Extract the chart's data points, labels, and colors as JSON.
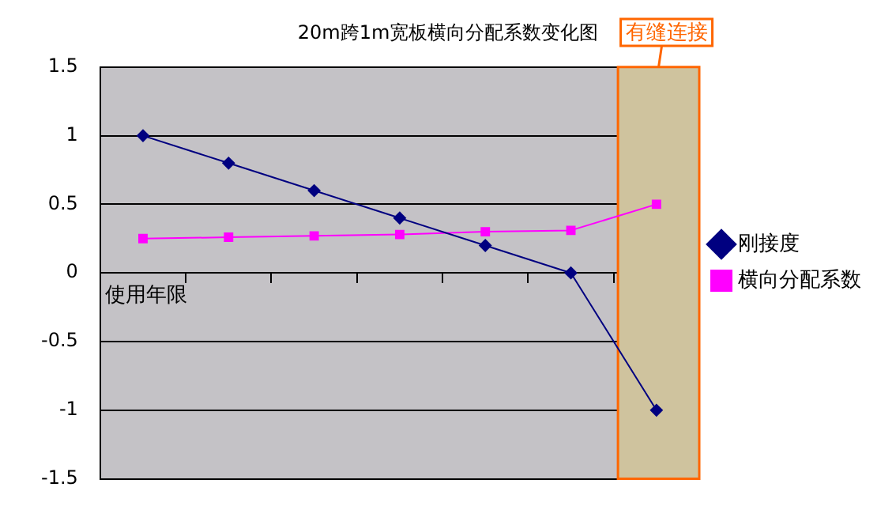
{
  "chart_data": {
    "type": "line",
    "title": "20m跨1m宽板横向分配系数变化图",
    "xlabel": "使用年限",
    "categories": [
      null,
      null,
      null,
      null,
      null,
      null,
      null
    ],
    "tick_labels": "y",
    "series": [
      {
        "name": "刚接度",
        "color": "#000080",
        "values": [
          1,
          0.8,
          0.6,
          0.4,
          0.2,
          0,
          -1
        ],
        "marker": "diamond"
      },
      {
        "name": "横向分配系数",
        "color": "#ff00ff",
        "values": [
          0.25,
          0.26,
          0.27,
          0.28,
          0.3,
          0.31,
          0.5
        ],
        "marker": "square"
      }
    ],
    "ylim": [
      -1.5,
      1.5
    ],
    "yticks": [
      -1.5,
      -1,
      -0.5,
      0,
      0.5,
      1,
      1.5
    ],
    "grid": "y",
    "legend": "right",
    "annotations": [
      "有缝连接"
    ]
  }
}
